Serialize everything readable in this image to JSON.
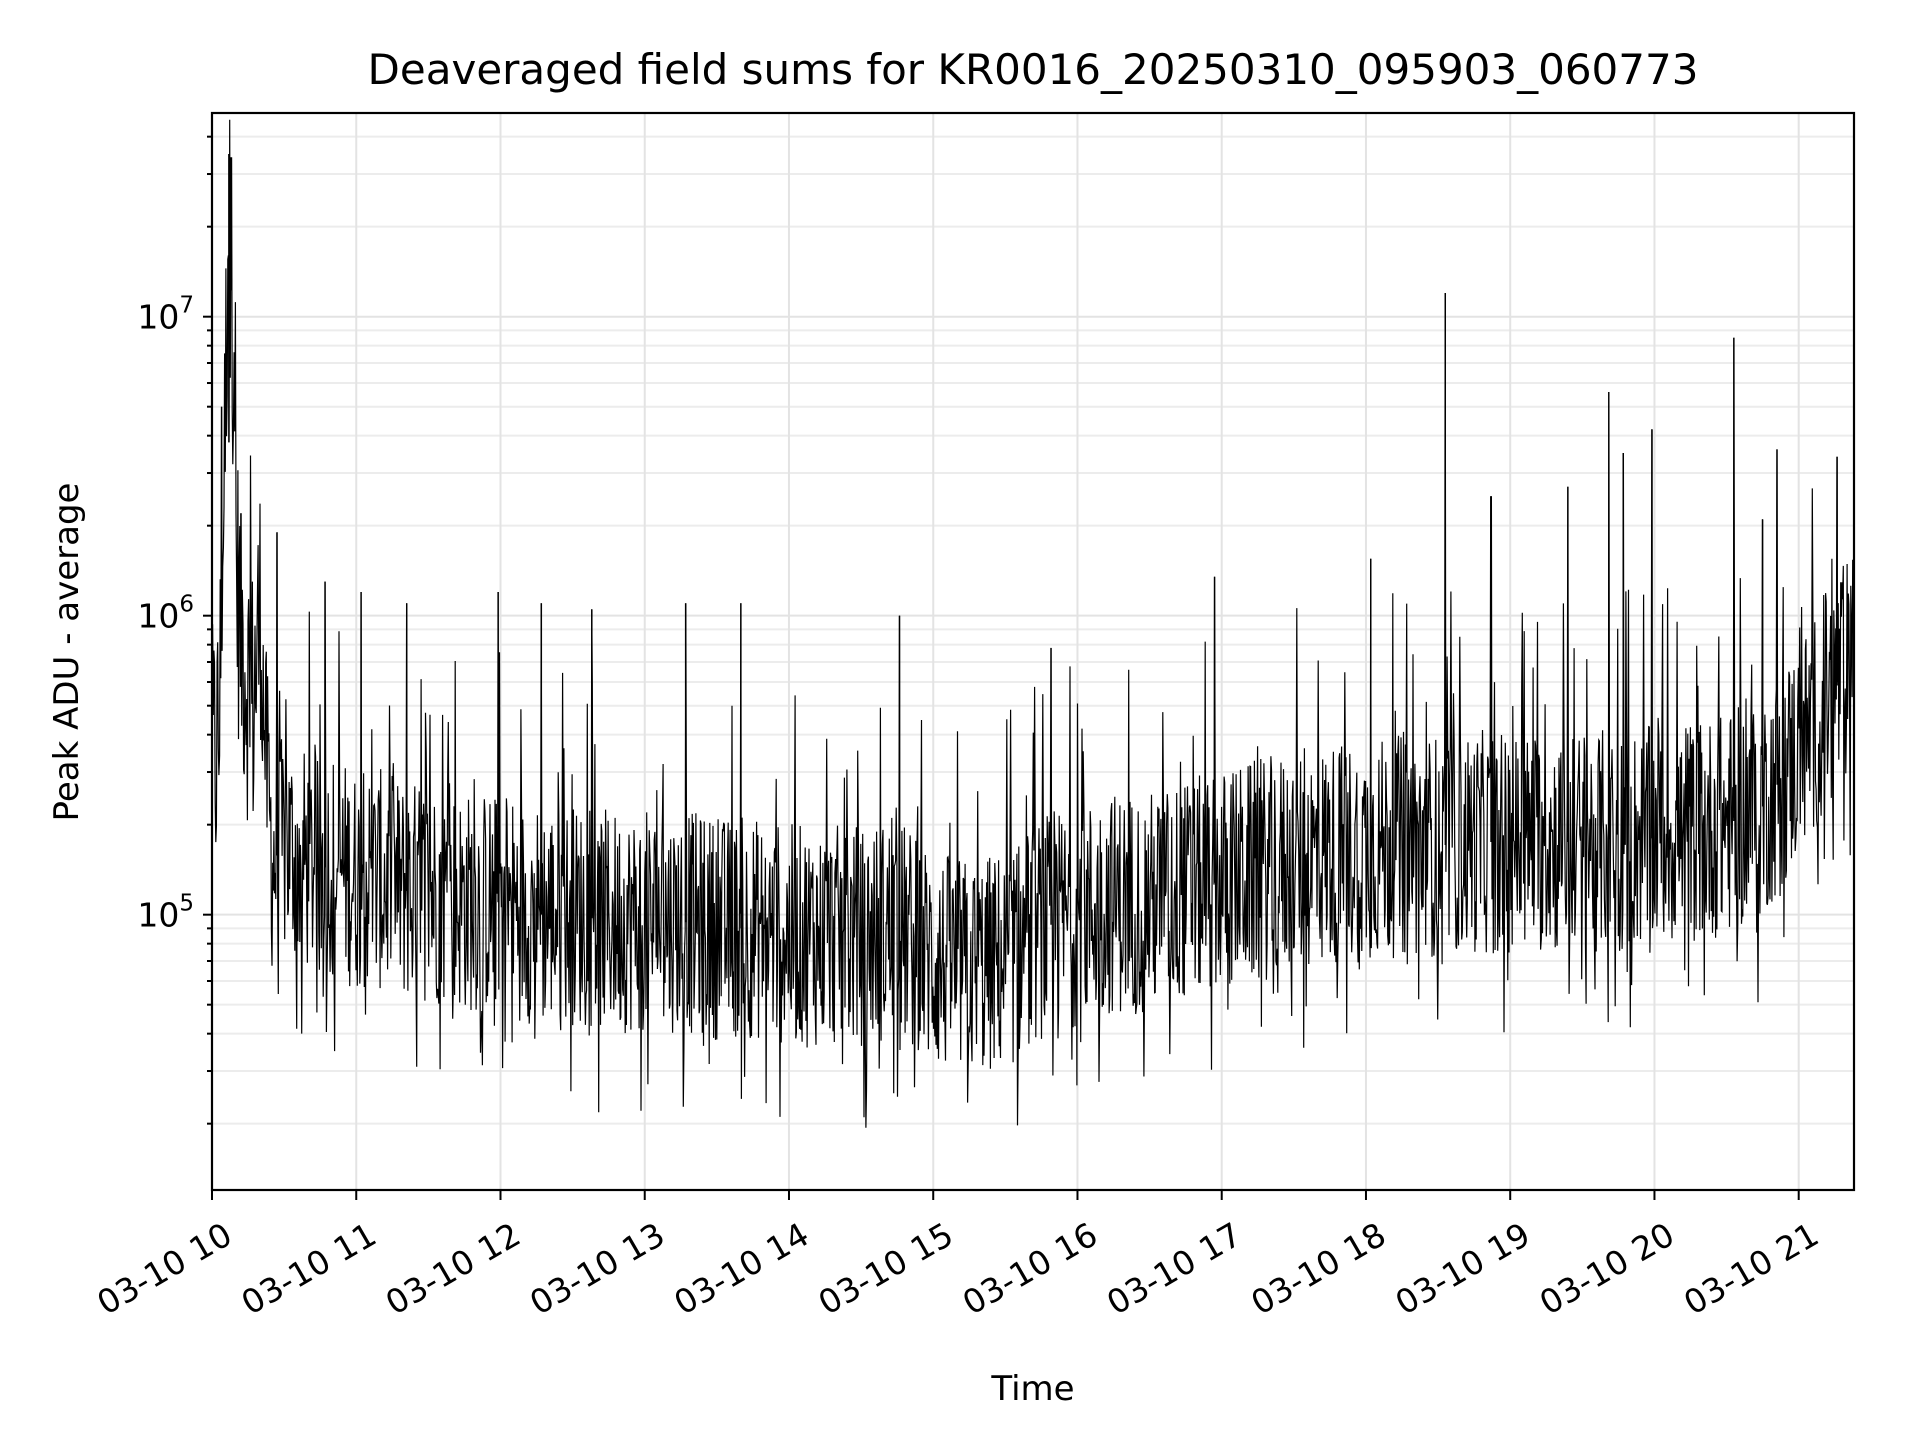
{
  "chart_data": {
    "type": "line",
    "title": "Deaveraged field sums for KR0016_20250310_095903_060773",
    "xlabel": "Time",
    "ylabel": "Peak ADU - average",
    "y_scale": "log",
    "grid": true,
    "grid_minor": true,
    "line_color": "#000000",
    "x_type": "datetime",
    "x_tick_labels": [
      "03-10 10",
      "03-10 11",
      "03-10 12",
      "03-10 13",
      "03-10 14",
      "03-10 15",
      "03-10 16",
      "03-10 17",
      "03-10 18",
      "03-10 19",
      "03-10 20",
      "03-10 21"
    ],
    "x_tick_datetimes": [
      "2025-03-10 10:00",
      "2025-03-10 11:00",
      "2025-03-10 12:00",
      "2025-03-10 13:00",
      "2025-03-10 14:00",
      "2025-03-10 15:00",
      "2025-03-10 16:00",
      "2025-03-10 17:00",
      "2025-03-10 18:00",
      "2025-03-10 19:00",
      "2025-03-10 20:00",
      "2025-03-10 21:00"
    ],
    "xlim": [
      "2025-03-10 10:00",
      "2025-03-10 21:23"
    ],
    "y_tick_labels": [
      {
        "base": "10",
        "exp": "5",
        "value": 100000
      },
      {
        "base": "10",
        "exp": "6",
        "value": 1000000
      },
      {
        "base": "10",
        "exp": "7",
        "value": 10000000
      }
    ],
    "ylim": [
      12000,
      48000000
    ],
    "series": [
      {
        "name": "",
        "x": [
          "2025-03-10 10:00",
          "2025-03-10 10:03",
          "2025-03-10 10:05",
          "2025-03-10 10:07",
          "2025-03-10 10:10",
          "2025-03-10 10:12",
          "2025-03-10 10:15",
          "2025-03-10 10:17",
          "2025-03-10 10:20",
          "2025-03-10 10:22",
          "2025-03-10 10:25",
          "2025-03-10 10:30",
          "2025-03-10 10:35",
          "2025-03-10 10:40",
          "2025-03-10 10:45",
          "2025-03-10 10:50",
          "2025-03-10 11:00",
          "2025-03-10 11:10",
          "2025-03-10 11:20",
          "2025-03-10 11:30",
          "2025-03-10 11:45",
          "2025-03-10 12:00",
          "2025-03-10 12:15",
          "2025-03-10 12:30",
          "2025-03-10 12:45",
          "2025-03-10 13:00",
          "2025-03-10 13:15",
          "2025-03-10 13:30",
          "2025-03-10 13:45",
          "2025-03-10 14:00",
          "2025-03-10 14:15",
          "2025-03-10 14:30",
          "2025-03-10 14:45",
          "2025-03-10 15:00",
          "2025-03-10 15:15",
          "2025-03-10 15:30",
          "2025-03-10 15:45",
          "2025-03-10 16:00",
          "2025-03-10 16:15",
          "2025-03-10 16:30",
          "2025-03-10 16:45",
          "2025-03-10 17:00",
          "2025-03-10 17:15",
          "2025-03-10 17:30",
          "2025-03-10 17:45",
          "2025-03-10 18:00",
          "2025-03-10 18:15",
          "2025-03-10 18:30",
          "2025-03-10 18:45",
          "2025-03-10 19:00",
          "2025-03-10 19:15",
          "2025-03-10 19:30",
          "2025-03-10 19:45",
          "2025-03-10 20:00",
          "2025-03-10 20:15",
          "2025-03-10 20:30",
          "2025-03-10 20:45",
          "2025-03-10 21:00",
          "2025-03-10 21:10",
          "2025-03-10 21:23"
        ],
        "y": [
          300000,
          400000,
          2300000,
          35000000,
          1500000,
          900000,
          600000,
          500000,
          1000000,
          400000,
          150000,
          170000,
          160000,
          150000,
          140000,
          150000,
          130000,
          130000,
          120000,
          120000,
          110000,
          110000,
          100000,
          100000,
          95000,
          95000,
          95000,
          90000,
          90000,
          85000,
          85000,
          85000,
          90000,
          70000,
          65000,
          70000,
          90000,
          100000,
          110000,
          110000,
          120000,
          130000,
          140000,
          150000,
          160000,
          165000,
          170000,
          170000,
          175000,
          175000,
          175000,
          175000,
          180000,
          180000,
          190000,
          200000,
          230000,
          350000,
          500000,
          700000
        ]
      }
    ],
    "spikes": [
      {
        "x": "2025-03-10 10:04",
        "y": 5000000
      },
      {
        "x": "2025-03-10 10:05",
        "y": 2300000
      },
      {
        "x": "2025-03-10 10:07",
        "y": 3800000
      },
      {
        "x": "2025-03-10 10:08",
        "y": 34000000
      },
      {
        "x": "2025-03-10 10:12",
        "y": 2200000
      },
      {
        "x": "2025-03-10 10:27",
        "y": 1900000
      },
      {
        "x": "2025-03-10 10:47",
        "y": 1300000
      },
      {
        "x": "2025-03-10 11:02",
        "y": 1200000
      },
      {
        "x": "2025-03-10 11:21",
        "y": 1100000
      },
      {
        "x": "2025-03-10 11:59",
        "y": 1200000
      },
      {
        "x": "2025-03-10 12:17",
        "y": 1100000
      },
      {
        "x": "2025-03-10 12:38",
        "y": 1050000
      },
      {
        "x": "2025-03-10 13:17",
        "y": 1100000
      },
      {
        "x": "2025-03-10 13:40",
        "y": 1100000
      },
      {
        "x": "2025-03-10 14:46",
        "y": 1000000
      },
      {
        "x": "2025-03-10 15:49",
        "y": 780000
      },
      {
        "x": "2025-03-10 16:57",
        "y": 1350000
      },
      {
        "x": "2025-03-10 18:02",
        "y": 1550000
      },
      {
        "x": "2025-03-10 18:33",
        "y": 12000000
      },
      {
        "x": "2025-03-10 18:52",
        "y": 2500000
      },
      {
        "x": "2025-03-10 19:24",
        "y": 2700000
      },
      {
        "x": "2025-03-10 19:41",
        "y": 5600000
      },
      {
        "x": "2025-03-10 19:47",
        "y": 3500000
      },
      {
        "x": "2025-03-10 19:59",
        "y": 4200000
      },
      {
        "x": "2025-03-10 20:33",
        "y": 8500000
      },
      {
        "x": "2025-03-10 20:45",
        "y": 2100000
      },
      {
        "x": "2025-03-10 20:51",
        "y": 3600000
      },
      {
        "x": "2025-03-10 21:16",
        "y": 3400000
      }
    ]
  }
}
